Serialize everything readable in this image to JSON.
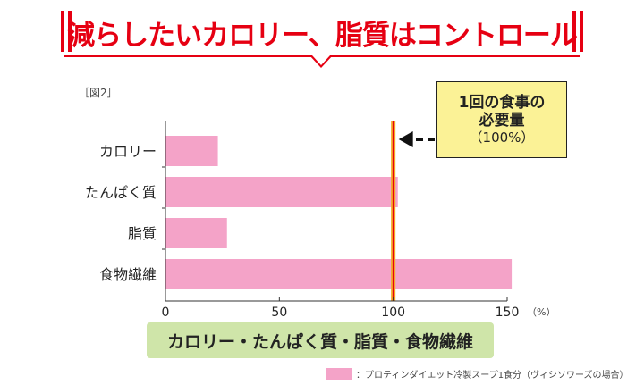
{
  "banner": {
    "title": "減らしたいカロリー、脂質はコントロール"
  },
  "figure_label": "［図2］",
  "callout": {
    "line1": "1回の食事の",
    "line2": "必要量",
    "line3": "（100%）"
  },
  "category_banner": "カロリー・たんぱく質・脂質・食物繊維",
  "legend_text": "：プロティンダイエット冷製スープ1食分（ヴィシソワーズの場合）",
  "colors": {
    "accent_red": "#e60012",
    "bar_pink": "#f4a3c8",
    "callout_yellow": "#fbf296",
    "reference_line": "#f5a623",
    "banner_green": "#cfe5a9"
  },
  "chart_data": {
    "type": "bar",
    "orientation": "horizontal",
    "categories": [
      "カロリー",
      "たんぱく質",
      "脂質",
      "食物繊維"
    ],
    "series": [
      {
        "values": [
          23,
          102,
          27,
          152
        ]
      }
    ],
    "xlim": [
      0,
      150
    ],
    "xticks": [
      0,
      50,
      100,
      150
    ],
    "x_unit": "（%）",
    "reference_value": 100,
    "grid": false
  }
}
